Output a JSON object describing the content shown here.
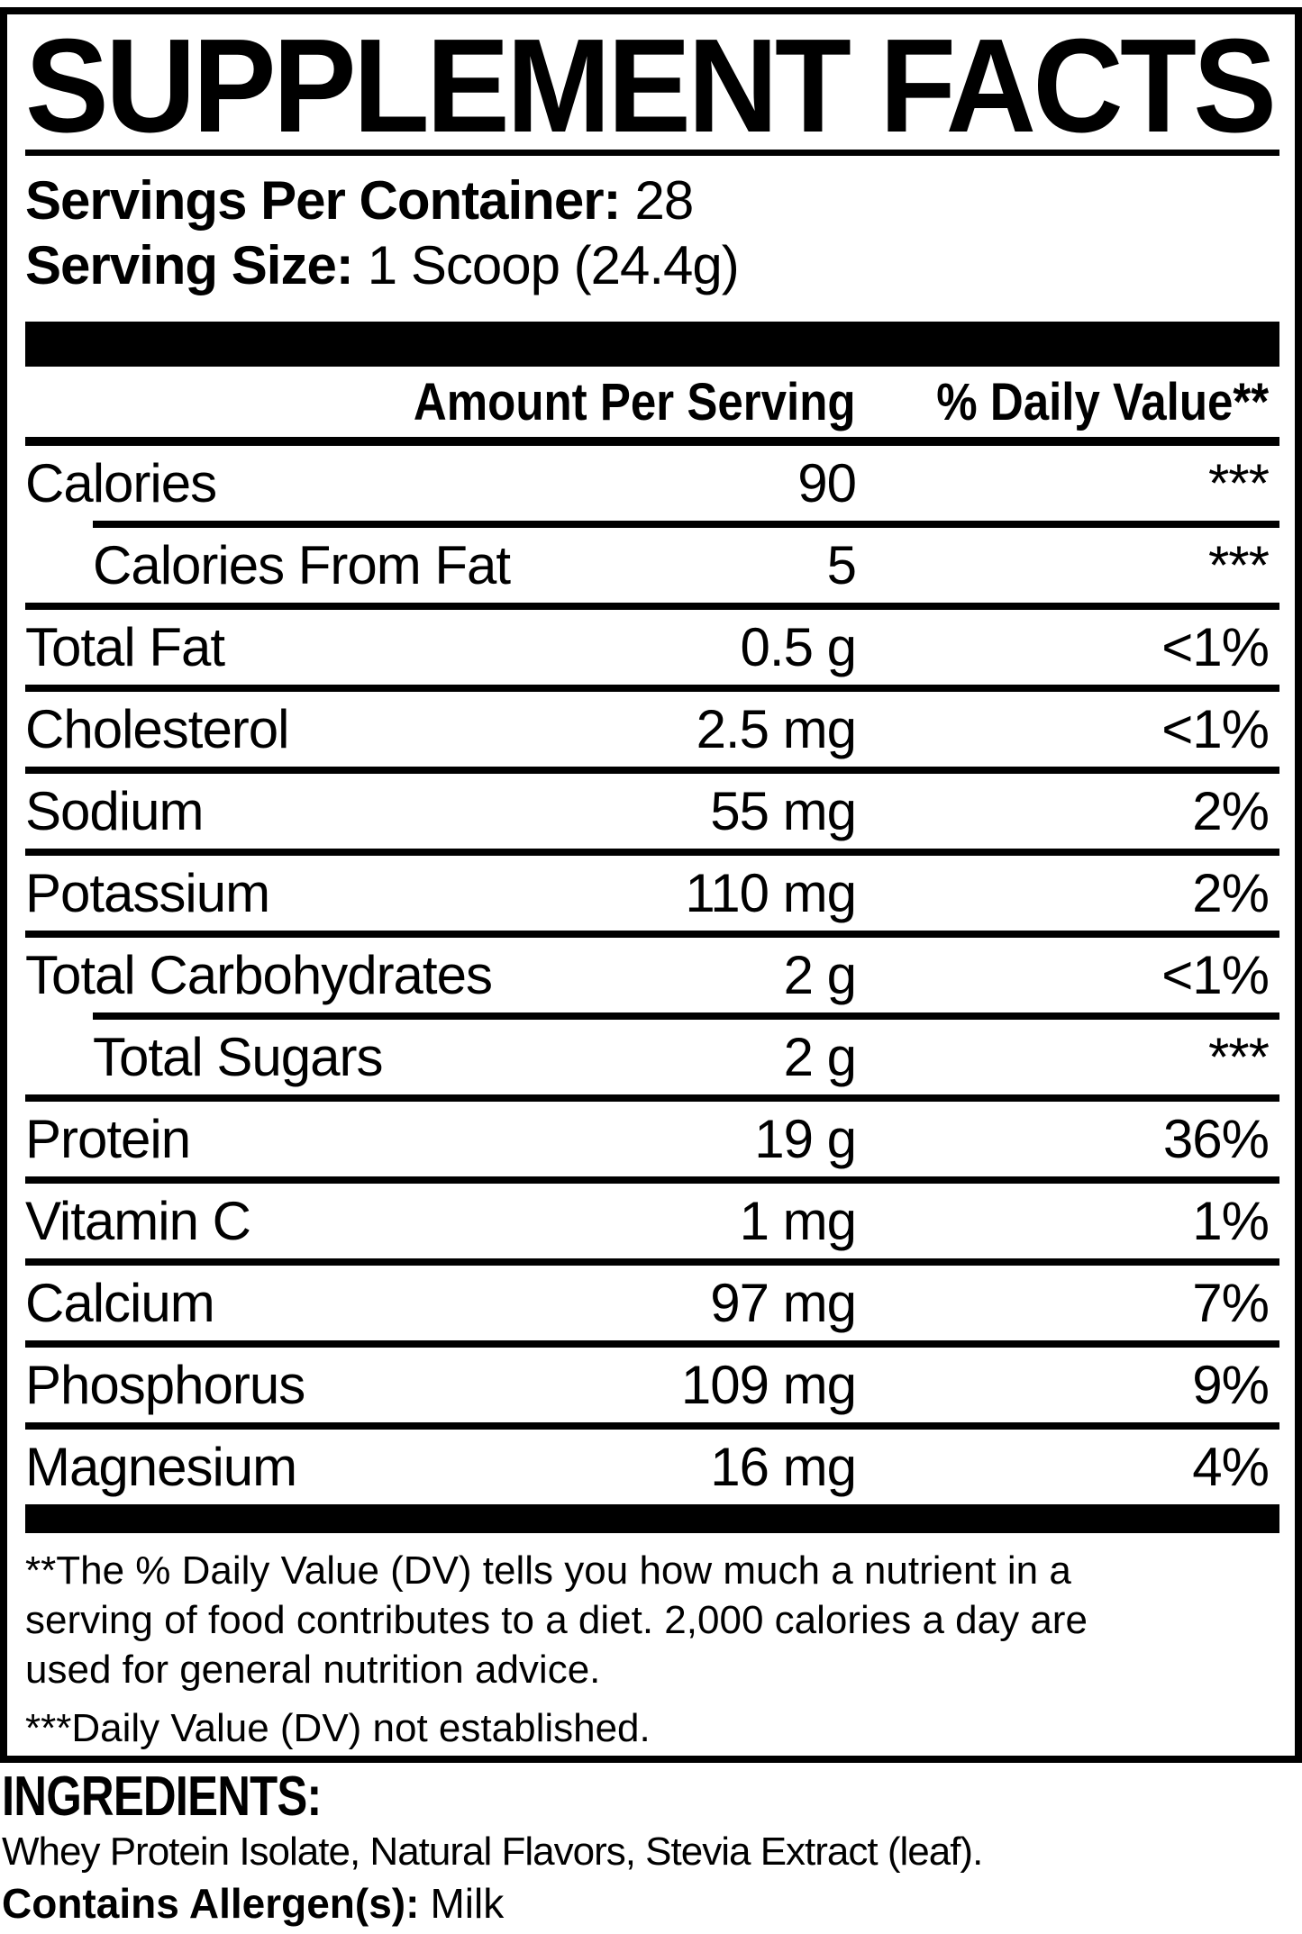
{
  "title": "SUPPLEMENT FACTS",
  "serving_info": {
    "servings_label": "Servings Per Container:",
    "servings_value": "28",
    "size_label": "Serving Size:",
    "size_value": "1 Scoop (24.4g)"
  },
  "table": {
    "col_amount": "Amount Per Serving",
    "col_dv": "% Daily Value**",
    "rows": [
      {
        "name": "Calories",
        "amount": "90",
        "dv": "***",
        "sub": false
      },
      {
        "name": "Calories From Fat",
        "amount": "5",
        "dv": "***",
        "sub": true
      },
      {
        "name": "Total Fat",
        "amount": "0.5 g",
        "dv": "<1%",
        "sub": false
      },
      {
        "name": "Cholesterol",
        "amount": "2.5 mg",
        "dv": "<1%",
        "sub": false
      },
      {
        "name": "Sodium",
        "amount": "55 mg",
        "dv": "2%",
        "sub": false
      },
      {
        "name": "Potassium",
        "amount": "110 mg",
        "dv": "2%",
        "sub": false
      },
      {
        "name": "Total Carbohydrates",
        "amount": "2 g",
        "dv": "<1%",
        "sub": false
      },
      {
        "name": "Total Sugars",
        "amount": "2 g",
        "dv": "***",
        "sub": true
      },
      {
        "name": "Protein",
        "amount": "19 g",
        "dv": "36%",
        "sub": false
      },
      {
        "name": "Vitamin C",
        "amount": "1 mg",
        "dv": "1%",
        "sub": false
      },
      {
        "name": "Calcium",
        "amount": "97 mg",
        "dv": "7%",
        "sub": false
      },
      {
        "name": "Phosphorus",
        "amount": "109 mg",
        "dv": "9%",
        "sub": false
      },
      {
        "name": "Magnesium",
        "amount": "16 mg",
        "dv": "4%",
        "sub": false
      }
    ]
  },
  "footnotes": {
    "daily_value": "**The % Daily Value (DV) tells you how much a nutrient in a\nserving of food contributes to a diet. 2,000 calories a day are\nused for general nutrition advice.",
    "not_established": "***Daily Value (DV) not established."
  },
  "ingredients": {
    "heading": "INGREDIENTS:",
    "list": "Whey Protein Isolate, Natural Flavors, Stevia Extract (leaf).",
    "allergen_label": "Contains Allergen(s):",
    "allergen_value": "Milk"
  },
  "colors": {
    "text": "#000000",
    "background": "#ffffff"
  }
}
